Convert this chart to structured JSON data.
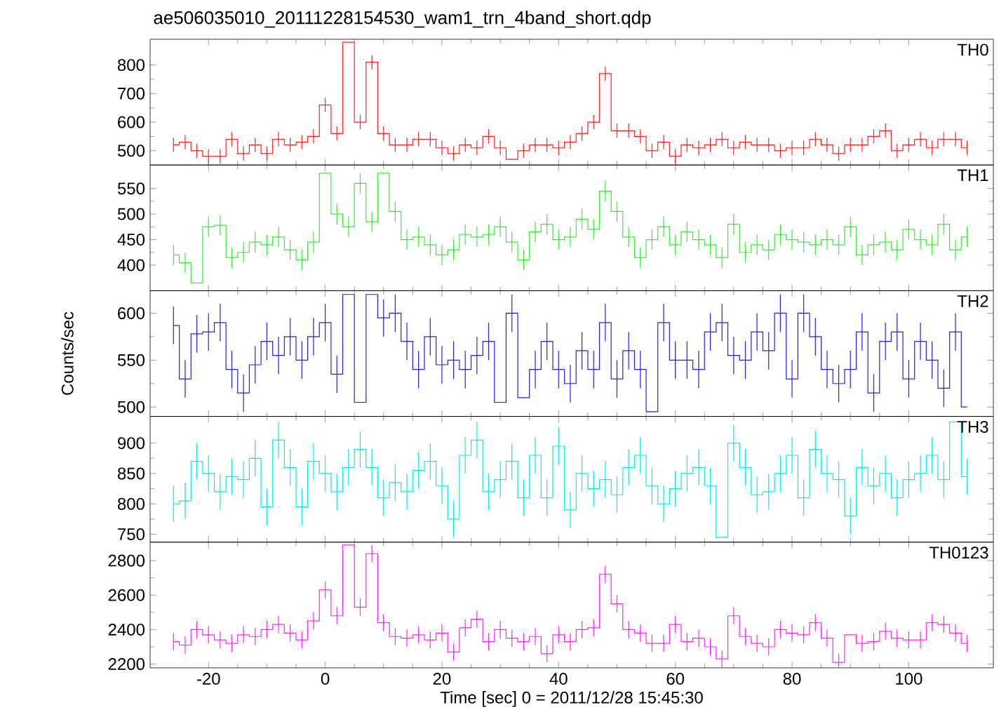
{
  "chart_data": [
    {
      "type": "step",
      "title": "ae506035010_20111228154530_wam1_trn_4band_short.qdp",
      "xlim": [
        -30,
        114.5
      ],
      "xticks": [
        -20,
        0,
        20,
        40,
        60,
        80,
        100
      ],
      "ylim": [
        450,
        890
      ],
      "yticks": [
        500,
        600,
        700,
        800
      ],
      "tick_labels": "y",
      "series": [
        {
          "name": "TH0",
          "color": "#ff2020",
          "x": [
            -26,
            -24,
            -22,
            -20,
            -18,
            -16,
            -14,
            -12,
            -10,
            -8,
            -6,
            -4,
            -2,
            0,
            2,
            4,
            6,
            8,
            10,
            12,
            14,
            16,
            18,
            20,
            22,
            24,
            26,
            28,
            30,
            32,
            34,
            36,
            38,
            40,
            42,
            44,
            46,
            48,
            50,
            52,
            54,
            56,
            58,
            60,
            62,
            64,
            66,
            68,
            70,
            72,
            74,
            76,
            78,
            80,
            82,
            84,
            86,
            88,
            90,
            92,
            94,
            96,
            98,
            100,
            102,
            104,
            106,
            108,
            110
          ],
          "values": [
            520,
            530,
            500,
            480,
            480,
            540,
            490,
            520,
            490,
            540,
            520,
            530,
            550,
            660,
            560,
            880,
            600,
            810,
            560,
            520,
            520,
            540,
            540,
            510,
            490,
            520,
            510,
            550,
            510,
            470,
            500,
            520,
            520,
            510,
            530,
            560,
            600,
            770,
            570,
            570,
            550,
            500,
            530,
            480,
            520,
            510,
            520,
            540,
            510,
            530,
            520,
            520,
            500,
            510,
            510,
            540,
            520,
            490,
            520,
            520,
            550,
            570,
            500,
            520,
            540,
            510,
            540,
            540,
            510
          ],
          "errors": [
            25,
            25,
            25,
            25,
            25,
            25,
            25,
            25,
            25,
            25,
            25,
            25,
            25,
            25,
            25,
            null,
            25,
            25,
            25,
            25,
            25,
            25,
            25,
            25,
            25,
            25,
            25,
            25,
            25,
            null,
            25,
            25,
            25,
            25,
            25,
            25,
            25,
            25,
            25,
            25,
            25,
            25,
            25,
            25,
            25,
            25,
            25,
            25,
            25,
            25,
            25,
            25,
            25,
            25,
            25,
            25,
            25,
            25,
            25,
            25,
            25,
            25,
            25,
            25,
            25,
            25,
            25,
            25,
            25
          ]
        }
      ]
    },
    {
      "type": "step",
      "xlim": [
        -30,
        114.5
      ],
      "xticks": [
        -20,
        0,
        20,
        40,
        60,
        80,
        100
      ],
      "ylim": [
        350,
        596
      ],
      "yticks": [
        400,
        450,
        500,
        550
      ],
      "tick_labels": "y",
      "series": [
        {
          "name": "TH1",
          "color": "#33ee33",
          "x": [
            -26,
            -24,
            -22,
            -20,
            -18,
            -16,
            -14,
            -12,
            -10,
            -8,
            -6,
            -4,
            -2,
            0,
            2,
            4,
            6,
            8,
            10,
            12,
            14,
            16,
            18,
            20,
            22,
            24,
            26,
            28,
            30,
            32,
            34,
            36,
            38,
            40,
            42,
            44,
            46,
            48,
            50,
            52,
            54,
            56,
            58,
            60,
            62,
            64,
            66,
            68,
            70,
            72,
            74,
            76,
            78,
            80,
            82,
            84,
            86,
            88,
            90,
            92,
            94,
            96,
            98,
            100,
            102,
            104,
            106,
            108,
            110
          ],
          "values": [
            420,
            405,
            365,
            475,
            478,
            415,
            425,
            445,
            440,
            455,
            430,
            410,
            445,
            580,
            500,
            475,
            560,
            485,
            580,
            505,
            450,
            455,
            440,
            420,
            430,
            460,
            455,
            460,
            475,
            445,
            410,
            465,
            480,
            450,
            455,
            490,
            470,
            545,
            505,
            455,
            415,
            450,
            475,
            440,
            465,
            450,
            440,
            415,
            480,
            425,
            440,
            430,
            460,
            450,
            445,
            440,
            450,
            440,
            475,
            420,
            440,
            445,
            430,
            470,
            450,
            440,
            480,
            430,
            455
          ],
          "errors": [
            20,
            20,
            null,
            20,
            20,
            20,
            20,
            20,
            20,
            20,
            20,
            20,
            20,
            null,
            20,
            20,
            20,
            20,
            null,
            20,
            20,
            20,
            20,
            20,
            20,
            20,
            20,
            20,
            20,
            20,
            20,
            20,
            20,
            20,
            20,
            20,
            20,
            20,
            20,
            20,
            20,
            20,
            20,
            20,
            20,
            20,
            20,
            20,
            20,
            20,
            20,
            20,
            20,
            20,
            20,
            20,
            20,
            20,
            20,
            20,
            20,
            20,
            20,
            20,
            20,
            20,
            20,
            20,
            20
          ]
        }
      ]
    },
    {
      "type": "step",
      "ylabel": "Counts/sec",
      "xlim": [
        -30,
        114.5
      ],
      "xticks": [
        -20,
        0,
        20,
        40,
        60,
        80,
        100
      ],
      "ylim": [
        490,
        624
      ],
      "yticks": [
        500,
        550,
        600
      ],
      "tick_labels": "y",
      "series": [
        {
          "name": "TH2",
          "color": "#2020ee",
          "x": [
            -26,
            -24,
            -22,
            -20,
            -18,
            -16,
            -14,
            -12,
            -10,
            -8,
            -6,
            -4,
            -2,
            0,
            2,
            4,
            6,
            8,
            10,
            12,
            14,
            16,
            18,
            20,
            22,
            24,
            26,
            28,
            30,
            32,
            34,
            36,
            38,
            40,
            42,
            44,
            46,
            48,
            50,
            52,
            54,
            56,
            58,
            60,
            62,
            64,
            66,
            68,
            70,
            72,
            74,
            76,
            78,
            80,
            82,
            84,
            86,
            88,
            90,
            92,
            94,
            96,
            98,
            100,
            102,
            104,
            106,
            108,
            110
          ],
          "values": [
            587,
            530,
            578,
            580,
            590,
            540,
            515,
            545,
            570,
            555,
            575,
            550,
            575,
            590,
            535,
            620,
            505,
            620,
            595,
            600,
            570,
            540,
            575,
            545,
            550,
            540,
            555,
            570,
            505,
            600,
            510,
            540,
            570,
            540,
            525,
            560,
            540,
            590,
            530,
            560,
            540,
            495,
            590,
            550,
            550,
            540,
            580,
            590,
            555,
            550,
            580,
            560,
            600,
            530,
            600,
            575,
            540,
            525,
            540,
            580,
            515,
            570,
            580,
            530,
            570,
            550,
            520,
            580,
            500
          ],
          "errors": [
            20,
            20,
            20,
            20,
            20,
            20,
            20,
            20,
            20,
            20,
            20,
            20,
            20,
            20,
            20,
            null,
            null,
            null,
            20,
            20,
            20,
            20,
            20,
            20,
            20,
            20,
            20,
            20,
            null,
            20,
            null,
            20,
            20,
            20,
            20,
            20,
            20,
            20,
            20,
            20,
            20,
            null,
            20,
            20,
            20,
            20,
            20,
            20,
            20,
            20,
            20,
            20,
            20,
            20,
            20,
            20,
            20,
            20,
            20,
            20,
            20,
            20,
            20,
            20,
            20,
            20,
            20,
            20,
            null
          ]
        }
      ]
    },
    {
      "type": "step",
      "xlim": [
        -30,
        114.5
      ],
      "xticks": [
        -20,
        0,
        20,
        40,
        60,
        80,
        100
      ],
      "ylim": [
        737,
        944
      ],
      "yticks": [
        750,
        800,
        850,
        900
      ],
      "tick_labels": "y",
      "series": [
        {
          "name": "TH3",
          "color": "#00eeee",
          "x": [
            -26,
            -24,
            -22,
            -20,
            -18,
            -16,
            -14,
            -12,
            -10,
            -8,
            -6,
            -4,
            -2,
            0,
            2,
            4,
            6,
            8,
            10,
            12,
            14,
            16,
            18,
            20,
            22,
            24,
            26,
            28,
            30,
            32,
            34,
            36,
            38,
            40,
            42,
            44,
            46,
            48,
            50,
            52,
            54,
            56,
            58,
            60,
            62,
            64,
            66,
            68,
            70,
            72,
            74,
            76,
            78,
            80,
            82,
            84,
            86,
            88,
            90,
            92,
            94,
            96,
            98,
            100,
            102,
            104,
            106,
            108,
            110
          ],
          "values": [
            800,
            805,
            870,
            850,
            820,
            845,
            840,
            875,
            795,
            905,
            860,
            795,
            870,
            850,
            820,
            860,
            890,
            860,
            810,
            835,
            820,
            855,
            870,
            830,
            775,
            880,
            905,
            820,
            840,
            870,
            810,
            880,
            810,
            895,
            790,
            850,
            825,
            840,
            815,
            860,
            880,
            830,
            800,
            825,
            850,
            860,
            830,
            745,
            900,
            860,
            815,
            820,
            850,
            880,
            810,
            890,
            850,
            840,
            780,
            860,
            830,
            850,
            810,
            840,
            850,
            880,
            840,
            935,
            845
          ],
          "errors": [
            30,
            30,
            30,
            30,
            30,
            30,
            30,
            30,
            30,
            30,
            30,
            30,
            30,
            30,
            30,
            30,
            30,
            30,
            30,
            30,
            30,
            30,
            30,
            30,
            30,
            30,
            30,
            30,
            30,
            30,
            30,
            30,
            30,
            30,
            30,
            30,
            30,
            30,
            30,
            30,
            30,
            30,
            30,
            30,
            30,
            30,
            30,
            null,
            30,
            30,
            30,
            30,
            30,
            30,
            30,
            30,
            30,
            30,
            30,
            30,
            30,
            30,
            30,
            30,
            30,
            30,
            30,
            null,
            30
          ]
        }
      ]
    },
    {
      "type": "step",
      "xlabel": "Time [sec] 0 = 2011/12/28 15:45:30",
      "xlim": [
        -30,
        114.5
      ],
      "xticks": [
        -20,
        0,
        20,
        40,
        60,
        80,
        100
      ],
      "ylim": [
        2178,
        2907
      ],
      "yticks": [
        2200,
        2400,
        2600,
        2800
      ],
      "series": [
        {
          "name": "TH0123",
          "color": "#ff22ff",
          "x": [
            -26,
            -24,
            -22,
            -20,
            -18,
            -16,
            -14,
            -12,
            -10,
            -8,
            -6,
            -4,
            -2,
            0,
            2,
            4,
            6,
            8,
            10,
            12,
            14,
            16,
            18,
            20,
            22,
            24,
            26,
            28,
            30,
            32,
            34,
            36,
            38,
            40,
            42,
            44,
            46,
            48,
            50,
            52,
            54,
            56,
            58,
            60,
            62,
            64,
            66,
            68,
            70,
            72,
            74,
            76,
            78,
            80,
            82,
            84,
            86,
            88,
            90,
            92,
            94,
            96,
            98,
            100,
            102,
            104,
            106,
            108,
            110
          ],
          "values": [
            2330,
            2310,
            2400,
            2370,
            2340,
            2320,
            2370,
            2360,
            2400,
            2430,
            2380,
            2340,
            2450,
            2630,
            2480,
            2890,
            2530,
            2840,
            2440,
            2360,
            2350,
            2370,
            2340,
            2380,
            2270,
            2410,
            2460,
            2330,
            2400,
            2350,
            2330,
            2360,
            2260,
            2370,
            2330,
            2400,
            2410,
            2720,
            2550,
            2400,
            2380,
            2320,
            2320,
            2430,
            2330,
            2350,
            2300,
            2230,
            2480,
            2360,
            2320,
            2300,
            2400,
            2380,
            2370,
            2440,
            2350,
            2210,
            2370,
            2320,
            2330,
            2390,
            2350,
            2340,
            2340,
            2440,
            2430,
            2380,
            2320
          ],
          "errors": [
            50,
            50,
            50,
            50,
            50,
            50,
            50,
            50,
            50,
            50,
            50,
            50,
            50,
            50,
            50,
            null,
            50,
            50,
            50,
            50,
            50,
            50,
            50,
            50,
            50,
            50,
            50,
            50,
            50,
            50,
            50,
            50,
            50,
            50,
            50,
            50,
            50,
            50,
            50,
            50,
            50,
            50,
            50,
            50,
            50,
            50,
            50,
            50,
            50,
            50,
            50,
            50,
            50,
            50,
            50,
            50,
            50,
            50,
            null,
            50,
            50,
            50,
            50,
            50,
            50,
            50,
            50,
            50,
            50
          ]
        }
      ]
    }
  ]
}
